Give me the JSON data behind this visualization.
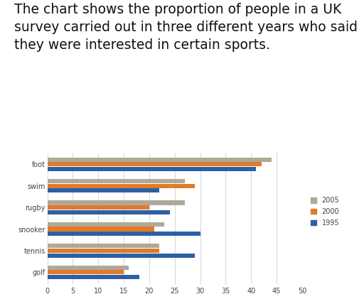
{
  "categories": [
    "foot",
    "swim",
    "rugby",
    "snooker",
    "tennis",
    "golf"
  ],
  "series": {
    "2005": [
      44,
      27,
      27,
      23,
      22,
      16
    ],
    "2000": [
      42,
      29,
      20,
      21,
      22,
      15
    ],
    "1995": [
      41,
      22,
      24,
      30,
      29,
      18
    ]
  },
  "colors": {
    "2005": "#b0a898",
    "2000": "#e07b2a",
    "1995": "#2e5fa3"
  },
  "xlim": [
    0,
    50
  ],
  "xticks": [
    0,
    5,
    10,
    15,
    20,
    25,
    30,
    35,
    40,
    45,
    50
  ],
  "title_line1": "The chart shows the proportion of people in a UK",
  "title_line2": "survey carried out in three different years who said",
  "title_line3": "they were interested in certain sports.",
  "title_fontsize": 13.5,
  "legend_labels": [
    "2005",
    "2000",
    "1995"
  ],
  "bar_height": 0.22,
  "background_color": "#ffffff"
}
